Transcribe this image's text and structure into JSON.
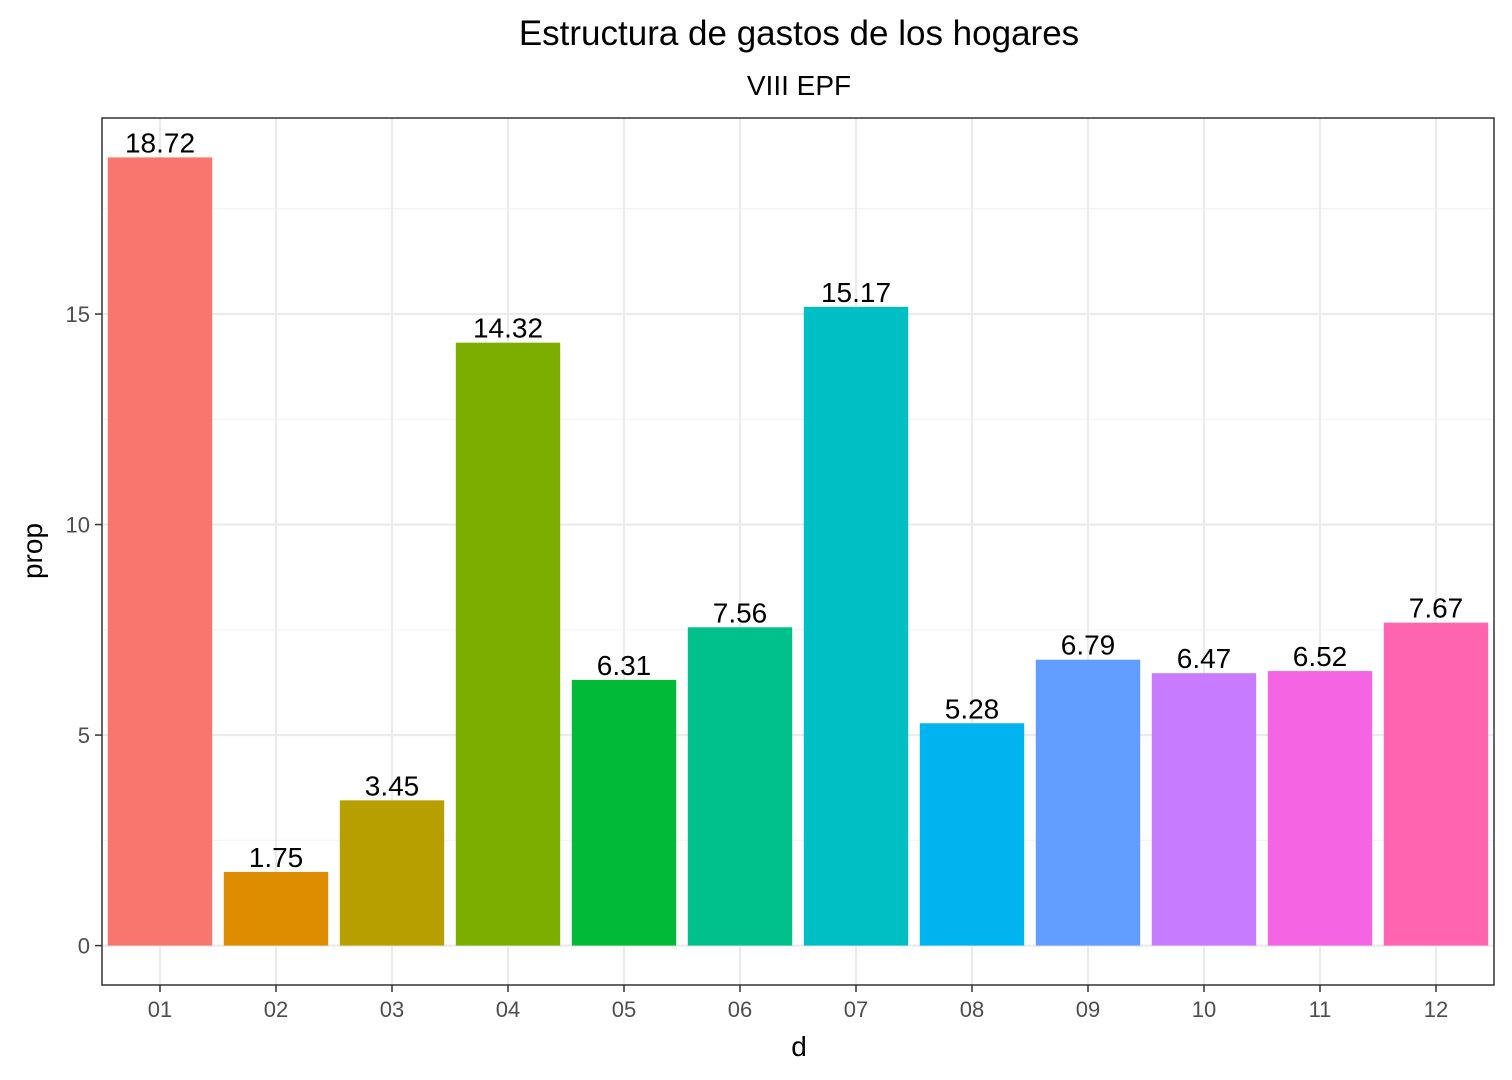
{
  "chart_data": {
    "type": "bar",
    "title": "Estructura de gastos de los hogares",
    "subtitle": "VIII EPF",
    "xlabel": "d",
    "ylabel": "prop",
    "categories": [
      "01",
      "02",
      "03",
      "04",
      "05",
      "06",
      "07",
      "08",
      "09",
      "10",
      "11",
      "12"
    ],
    "values": [
      18.72,
      1.75,
      3.45,
      14.32,
      6.31,
      7.56,
      15.17,
      5.28,
      6.79,
      6.47,
      6.52,
      7.67
    ],
    "data_labels": [
      "18.72",
      "1.75",
      "3.45",
      "14.32",
      "6.31",
      "7.56",
      "15.17",
      "5.28",
      "6.79",
      "6.47",
      "6.52",
      "7.67"
    ],
    "colors": [
      "#F8766D",
      "#DE8C00",
      "#B79F00",
      "#7CAE00",
      "#00BA38",
      "#00C08B",
      "#00BFC4",
      "#00B4F0",
      "#619CFF",
      "#C77CFF",
      "#F564E3",
      "#FF64B0"
    ],
    "yticks": [
      0,
      5,
      10,
      15
    ],
    "ytick_labels": [
      "0",
      "5",
      "10",
      "15"
    ],
    "ylim": [
      -0.936,
      19.656
    ],
    "grid": true,
    "legend": "none"
  }
}
